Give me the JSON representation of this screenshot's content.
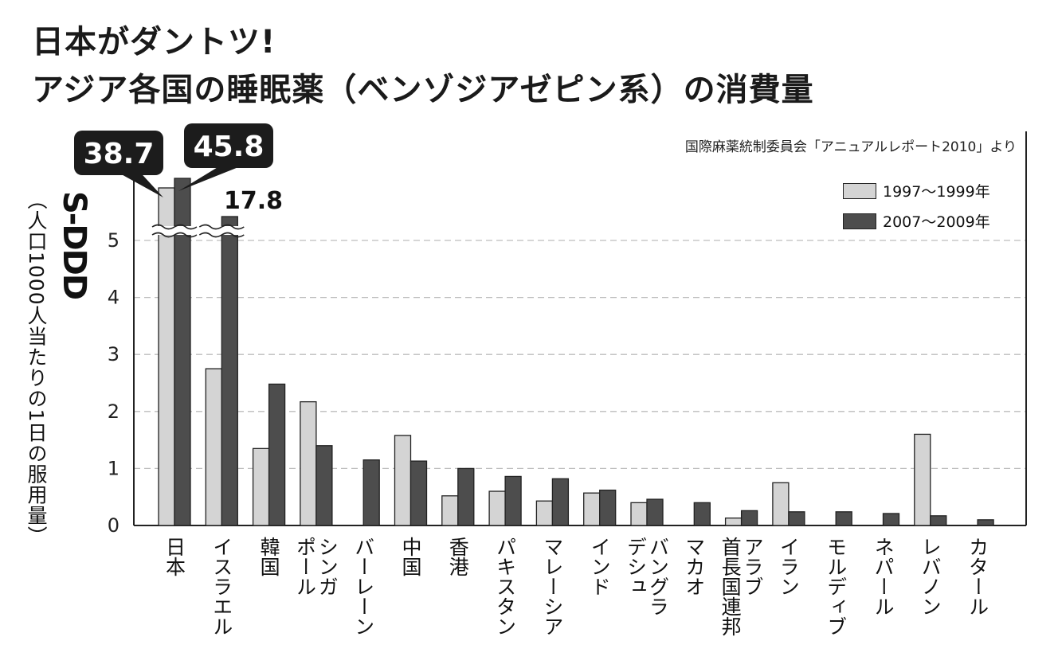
{
  "title_line1": "日本がダントツ!",
  "title_line2": "アジア各国の睡眠薬（ベンゾジアゼピン系）の消費量",
  "source": "国際麻薬統制委員会「アニュアルレポート2010」より",
  "ylabel_main": "S-DDD",
  "ylabel_sub": "（人口1000人当たりの1日の服用量）",
  "colors": {
    "series1": "#d4d4d4",
    "series2": "#4d4d4d",
    "grid": "#bdbdbd",
    "callout": "#1c1c1c"
  },
  "chart_data": {
    "type": "bar",
    "categories": [
      "日本",
      "イスラエル",
      "韓国",
      "シンガポール",
      "バーレーン",
      "中国",
      "香港",
      "パキスタン",
      "マレーシア",
      "インド",
      "バングラデシュ",
      "マカオ",
      "アラブ首長国連邦",
      "イラン",
      "モルディブ",
      "ネパール",
      "レバノン",
      "カタール"
    ],
    "category_lines": [
      [
        "日本"
      ],
      [
        "イスラエル"
      ],
      [
        "韓国"
      ],
      [
        "シンガ",
        "ポール"
      ],
      [
        "バーレーン"
      ],
      [
        "中国"
      ],
      [
        "香港"
      ],
      [
        "パキスタン"
      ],
      [
        "マレーシア"
      ],
      [
        "インド"
      ],
      [
        "バングラ",
        "デシュ"
      ],
      [
        "マカオ"
      ],
      [
        "アラブ",
        "首長国連邦"
      ],
      [
        "イラン"
      ],
      [
        "モルディブ"
      ],
      [
        "ネパール"
      ],
      [
        "レバノン"
      ],
      [
        "カタール"
      ]
    ],
    "series": [
      {
        "name": "1997〜1999年",
        "values": [
          38.7,
          2.75,
          1.35,
          2.17,
          null,
          1.58,
          0.52,
          0.6,
          0.43,
          0.57,
          0.4,
          null,
          0.13,
          0.75,
          null,
          null,
          1.6,
          null
        ]
      },
      {
        "name": "2007〜2009年",
        "values": [
          45.8,
          17.8,
          2.48,
          1.4,
          1.15,
          1.13,
          1.0,
          0.86,
          0.82,
          0.62,
          0.46,
          0.4,
          0.26,
          0.24,
          0.24,
          0.21,
          0.17,
          0.1
        ]
      }
    ],
    "callouts": [
      "38.7",
      "45.8",
      "17.8"
    ],
    "ylim": [
      0,
      5
    ],
    "yticks": [
      0,
      1,
      2,
      3,
      4,
      5
    ],
    "axis_break": true,
    "grid": true,
    "legend_position": "top-right"
  }
}
